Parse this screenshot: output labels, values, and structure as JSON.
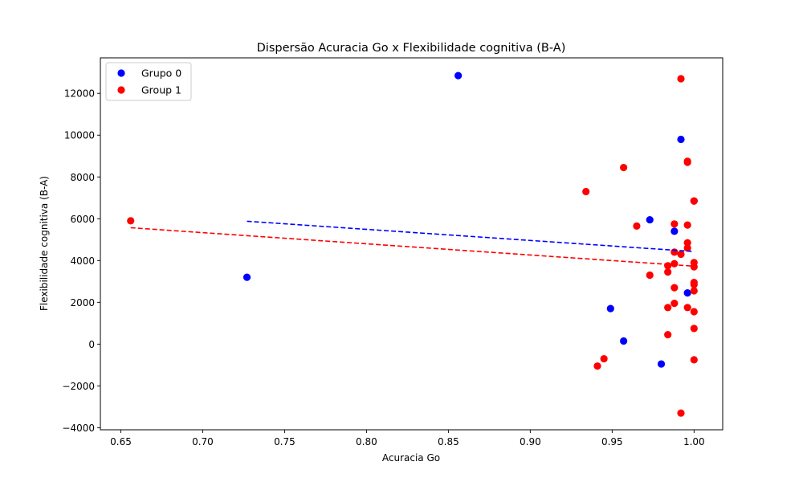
{
  "chart_data": {
    "type": "scatter",
    "title": "Dispersão Acuracia Go x Flexibilidade cognitiva (B-A)",
    "xlabel": "Acuracia Go",
    "ylabel": "Flexibilidade cognitiva (B-A)",
    "xlim": [
      0.6375,
      1.0175
    ],
    "ylim": [
      -4100,
      13700
    ],
    "xticks": [
      0.65,
      0.7,
      0.75,
      0.8,
      0.85,
      0.9,
      0.95,
      1.0
    ],
    "xtick_labels": [
      "0.65",
      "0.70",
      "0.75",
      "0.80",
      "0.85",
      "0.90",
      "0.95",
      "1.00"
    ],
    "yticks": [
      -4000,
      -2000,
      0,
      2000,
      4000,
      6000,
      8000,
      10000,
      12000
    ],
    "ytick_labels": [
      "−4000",
      "−2000",
      "0",
      "2000",
      "4000",
      "6000",
      "8000",
      "10000",
      "12000"
    ],
    "grid": false,
    "legend_position": "upper-left",
    "series": [
      {
        "name": "Grupo 0",
        "color": "#0000ff",
        "points": [
          [
            0.856,
            12850
          ],
          [
            0.727,
            3200
          ],
          [
            0.949,
            1700
          ],
          [
            0.957,
            150
          ],
          [
            0.973,
            5950
          ],
          [
            0.98,
            -950
          ],
          [
            0.988,
            5400
          ],
          [
            0.992,
            9800
          ],
          [
            0.996,
            2450
          ],
          [
            1.0,
            6850
          ]
        ],
        "trendline": [
          [
            0.727,
            5880
          ],
          [
            1.0,
            4430
          ]
        ]
      },
      {
        "name": "Group 1",
        "color": "#ff0000",
        "points": [
          [
            0.656,
            5900
          ],
          [
            0.934,
            7300
          ],
          [
            0.941,
            -1050
          ],
          [
            0.945,
            -700
          ],
          [
            0.957,
            8450
          ],
          [
            0.965,
            5650
          ],
          [
            0.973,
            3300
          ],
          [
            0.984,
            3750
          ],
          [
            0.984,
            3450
          ],
          [
            0.984,
            1750
          ],
          [
            0.984,
            450
          ],
          [
            0.988,
            5750
          ],
          [
            0.988,
            4400
          ],
          [
            0.988,
            3850
          ],
          [
            0.988,
            2700
          ],
          [
            0.988,
            1950
          ],
          [
            0.992,
            12700
          ],
          [
            0.992,
            4300
          ],
          [
            0.992,
            -3300
          ],
          [
            0.996,
            8750
          ],
          [
            0.996,
            8700
          ],
          [
            0.996,
            5700
          ],
          [
            0.996,
            4850
          ],
          [
            0.996,
            4600
          ],
          [
            0.996,
            1750
          ],
          [
            1.0,
            6850
          ],
          [
            1.0,
            3900
          ],
          [
            1.0,
            3700
          ],
          [
            1.0,
            2950
          ],
          [
            1.0,
            2850
          ],
          [
            1.0,
            2550
          ],
          [
            1.0,
            1550
          ],
          [
            1.0,
            750
          ],
          [
            1.0,
            -750
          ]
        ],
        "trendline": [
          [
            0.656,
            5570
          ],
          [
            1.0,
            3730
          ]
        ]
      }
    ]
  }
}
